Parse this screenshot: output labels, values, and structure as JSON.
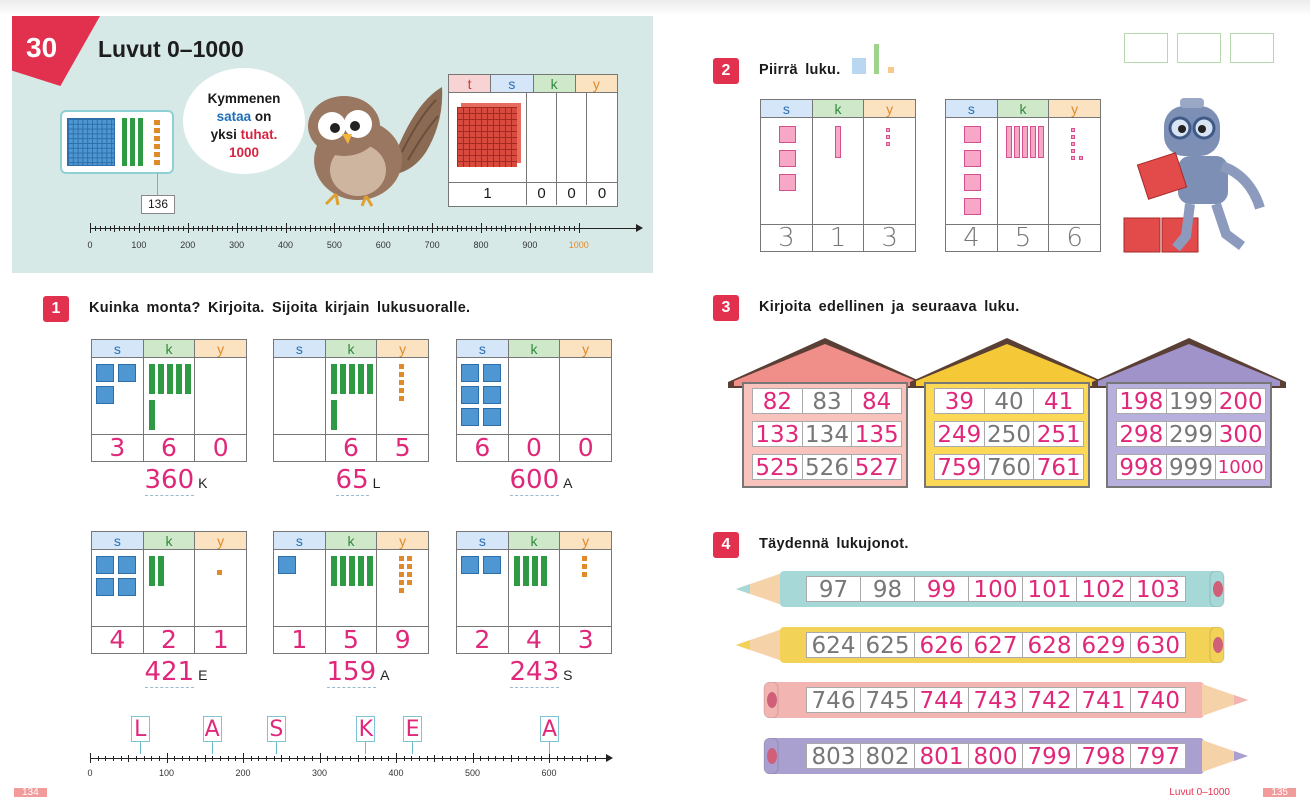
{
  "chapter": {
    "number": "30",
    "title": "Luvut 0–1000"
  },
  "bubble": {
    "l1": "Kymmenen",
    "l2a": "sataa",
    "l2b": "on",
    "l3a": "yksi",
    "l3b": "tuhat.",
    "l4": "1000"
  },
  "hdr_table": {
    "t": "t",
    "s": "s",
    "k": "k",
    "y": "y",
    "digits": [
      "1",
      "0",
      "0",
      "0"
    ]
  },
  "hdr_numberline": {
    "marker": "136",
    "ticks": [
      "0",
      "100",
      "200",
      "300",
      "400",
      "500",
      "600",
      "700",
      "800",
      "900",
      "1000"
    ]
  },
  "task1": {
    "badge": "1",
    "instruction": "Kuinka monta? Kirjoita. Sijoita kirjain lukusuoralle.",
    "cols": {
      "s": "s",
      "k": "k",
      "y": "y"
    },
    "items": [
      {
        "digits": [
          "3",
          "6",
          "0"
        ],
        "answer": "360",
        "letter": "K"
      },
      {
        "digits": [
          "",
          "6",
          "5"
        ],
        "answer": "65",
        "letter": "L"
      },
      {
        "digits": [
          "6",
          "0",
          "0"
        ],
        "answer": "600",
        "letter": "A"
      },
      {
        "digits": [
          "4",
          "2",
          "1"
        ],
        "answer": "421",
        "letter": "E"
      },
      {
        "digits": [
          "1",
          "5",
          "9"
        ],
        "answer": "159",
        "letter": "A"
      },
      {
        "digits": [
          "2",
          "4",
          "3"
        ],
        "answer": "243",
        "letter": "S"
      }
    ],
    "numberline": {
      "ticks": [
        "0",
        "100",
        "200",
        "300",
        "400",
        "500",
        "600"
      ],
      "letters": [
        {
          "letter": "L",
          "value": 65
        },
        {
          "letter": "A",
          "value": 159
        },
        {
          "letter": "S",
          "value": 243
        },
        {
          "letter": "K",
          "value": 360
        },
        {
          "letter": "E",
          "value": 421
        },
        {
          "letter": "A",
          "value": 600
        }
      ]
    }
  },
  "task2": {
    "badge": "2",
    "instruction": "Piirrä luku.",
    "tables": [
      {
        "digits": [
          "3",
          "1",
          "3"
        ]
      },
      {
        "digits": [
          "4",
          "5",
          "6"
        ]
      }
    ]
  },
  "task3": {
    "badge": "3",
    "instruction": "Kirjoita edellinen ja seuraava luku.",
    "houses": [
      {
        "roof": "#f08f8a",
        "body": "#f9c3bd",
        "rows": [
          [
            "82",
            "83",
            "84"
          ],
          [
            "133",
            "134",
            "135"
          ],
          [
            "525",
            "526",
            "527"
          ]
        ]
      },
      {
        "roof": "#f5c838",
        "body": "#fbd957",
        "rows": [
          [
            "39",
            "40",
            "41"
          ],
          [
            "249",
            "250",
            "251"
          ],
          [
            "759",
            "760",
            "761"
          ]
        ]
      },
      {
        "roof": "#9f93c9",
        "body": "#b8b0dc",
        "rows": [
          [
            "198",
            "199",
            "200"
          ],
          [
            "298",
            "299",
            "300"
          ],
          [
            "998",
            "999",
            "1000"
          ]
        ]
      }
    ]
  },
  "task4": {
    "badge": "4",
    "instruction": "Täydennä lukujonot.",
    "pencils": [
      {
        "color": "#a7d8d8",
        "values": [
          "97",
          "98",
          "99",
          "100",
          "101",
          "102",
          "103"
        ],
        "given": 2,
        "dir": "left"
      },
      {
        "color": "#f2d257",
        "values": [
          "624",
          "625",
          "626",
          "627",
          "628",
          "629",
          "630"
        ],
        "given": 2,
        "dir": "left"
      },
      {
        "color": "#f3b5b2",
        "values": [
          "746",
          "745",
          "744",
          "743",
          "742",
          "741",
          "740"
        ],
        "given": 2,
        "dir": "right"
      },
      {
        "color": "#a9a0d0",
        "values": [
          "803",
          "802",
          "801",
          "800",
          "799",
          "798",
          "797"
        ],
        "given": 2,
        "dir": "right"
      }
    ]
  },
  "footer": {
    "left_page": "134",
    "right_title": "Luvut 0–1000",
    "right_page": "135"
  }
}
